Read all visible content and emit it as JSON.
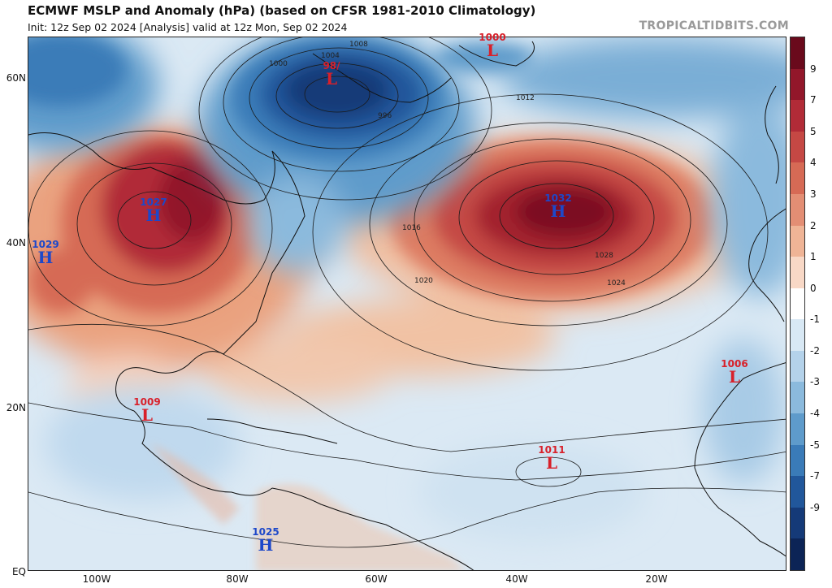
{
  "header": {
    "title": "ECMWF MSLP and Anomaly (hPa) (based on CFSR 1981-2010 Climatology)",
    "subtitle": "Init: 12z Sep 02 2024   [Analysis]   valid at 12z Mon, Sep 02 2024",
    "watermark": "TROPICALTIDBITS.COM"
  },
  "axes": {
    "lat_labels": [
      "60N",
      "40N",
      "20N",
      "EQ"
    ],
    "lon_labels": [
      "100W",
      "80W",
      "60W",
      "40W",
      "20W"
    ]
  },
  "colorbar": {
    "labels": [
      "9",
      "7",
      "5",
      "4",
      "3",
      "2",
      "1",
      "0",
      "-1",
      "-2",
      "-3",
      "-4",
      "-5",
      "-7",
      "-9"
    ],
    "colors": [
      "#6a0a1c",
      "#92172a",
      "#b12b37",
      "#c54844",
      "#d66a55",
      "#e38e74",
      "#efb496",
      "#f8d8c6",
      "#ffffff",
      "#d8e8f4",
      "#b4d2ea",
      "#8bbadd",
      "#5e9bcb",
      "#3a7bb8",
      "#21579b",
      "#153a78",
      "#0c2456"
    ]
  },
  "pressure_systems": [
    {
      "type": "L",
      "value": "98/"
    },
    {
      "type": "L",
      "value": "1000"
    },
    {
      "type": "H",
      "value": "1027"
    },
    {
      "type": "H",
      "value": "1029"
    },
    {
      "type": "H",
      "value": "1032"
    },
    {
      "type": "L",
      "value": "1009"
    },
    {
      "type": "L",
      "value": "1011"
    },
    {
      "type": "L",
      "value": "1006"
    },
    {
      "type": "H",
      "value": "1025"
    }
  ],
  "isobar_labels": [
    "1008",
    "1004",
    "1000",
    "996",
    "1012",
    "1016",
    "1020",
    "1024",
    "1028"
  ]
}
